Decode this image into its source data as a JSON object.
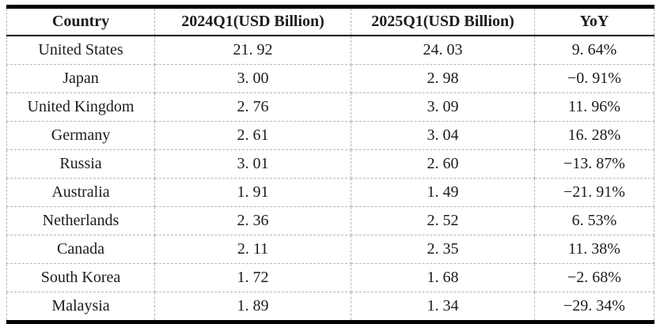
{
  "chart_data": {
    "type": "table",
    "title": "",
    "columns": [
      "Country",
      "2024Q1(USD Billion)",
      "2025Q1(USD Billion)",
      "YoY"
    ],
    "rows": [
      {
        "country": "United States",
        "q1_2024": "21. 92",
        "q1_2025": "24. 03",
        "yoy": "9. 64%"
      },
      {
        "country": "Japan",
        "q1_2024": "3. 00",
        "q1_2025": "2. 98",
        "yoy": "−0. 91%"
      },
      {
        "country": "United Kingdom",
        "q1_2024": "2. 76",
        "q1_2025": "3. 09",
        "yoy": "11. 96%"
      },
      {
        "country": "Germany",
        "q1_2024": "2. 61",
        "q1_2025": "3. 04",
        "yoy": "16. 28%"
      },
      {
        "country": "Russia",
        "q1_2024": "3. 01",
        "q1_2025": "2. 60",
        "yoy": "−13. 87%"
      },
      {
        "country": "Australia",
        "q1_2024": "1. 91",
        "q1_2025": "1. 49",
        "yoy": "−21. 91%"
      },
      {
        "country": "Netherlands",
        "q1_2024": "2. 36",
        "q1_2025": "2. 52",
        "yoy": "6. 53%"
      },
      {
        "country": "Canada",
        "q1_2024": "2. 11",
        "q1_2025": "2. 35",
        "yoy": "11. 38%"
      },
      {
        "country": "South Korea",
        "q1_2024": "1. 72",
        "q1_2025": "1. 68",
        "yoy": "−2. 68%"
      },
      {
        "country": "Malaysia",
        "q1_2024": "1. 89",
        "q1_2025": "1. 34",
        "yoy": "−29. 34%"
      }
    ],
    "values_numeric": {
      "q1_2024": [
        21.92,
        3.0,
        2.76,
        2.61,
        3.01,
        1.91,
        2.36,
        2.11,
        1.72,
        1.89
      ],
      "q1_2025": [
        24.03,
        2.98,
        3.09,
        3.04,
        2.6,
        1.49,
        2.52,
        2.35,
        1.68,
        1.34
      ],
      "yoy_percent": [
        9.64,
        -0.91,
        11.96,
        16.28,
        -13.87,
        -21.91,
        6.53,
        11.38,
        -2.68,
        -29.34
      ]
    },
    "layout_hints": {
      "grid": "dashed-light-gray",
      "outer_top_bottom_border": "thick-solid-black",
      "header_underline": "solid-black",
      "cell_alignment": "center"
    }
  },
  "colors": {
    "border_strong": "#000000",
    "grid_dashed": "#b8b8b8",
    "text": "#1c1c1c",
    "background": "#ffffff"
  }
}
